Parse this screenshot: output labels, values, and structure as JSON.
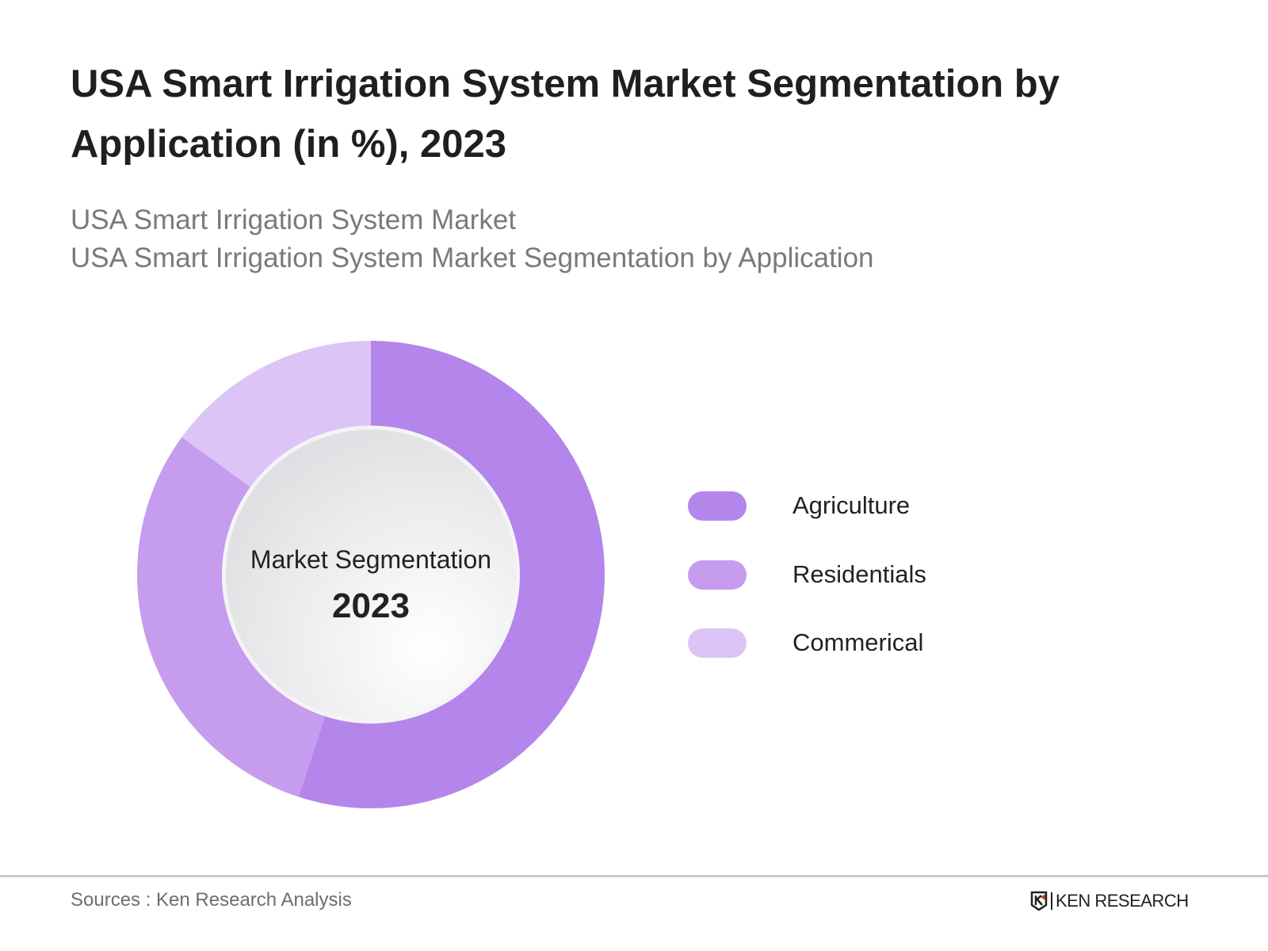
{
  "title": "USA Smart Irrigation System Market Segmentation by Application (in %), 2023",
  "subtitle_lines": [
    "USA Smart Irrigation System Market",
    "USA Smart Irrigation System Market Segmentation by Application"
  ],
  "chart_data": {
    "type": "pie",
    "variant": "donut",
    "title": "USA Smart Irrigation System Market Segmentation by Application (in %), 2023",
    "center_label": "Market Segmentation",
    "center_year": "2023",
    "categories": [
      "Agriculture",
      "Residentials",
      "Commerical"
    ],
    "values": [
      55,
      30,
      15
    ],
    "colors": [
      "#b485ea",
      "#c69cee",
      "#dcc4f7"
    ],
    "legend_position": "right"
  },
  "footer": {
    "source": "Sources : Ken Research Analysis",
    "logo_text": "KEN RESEARCH"
  }
}
